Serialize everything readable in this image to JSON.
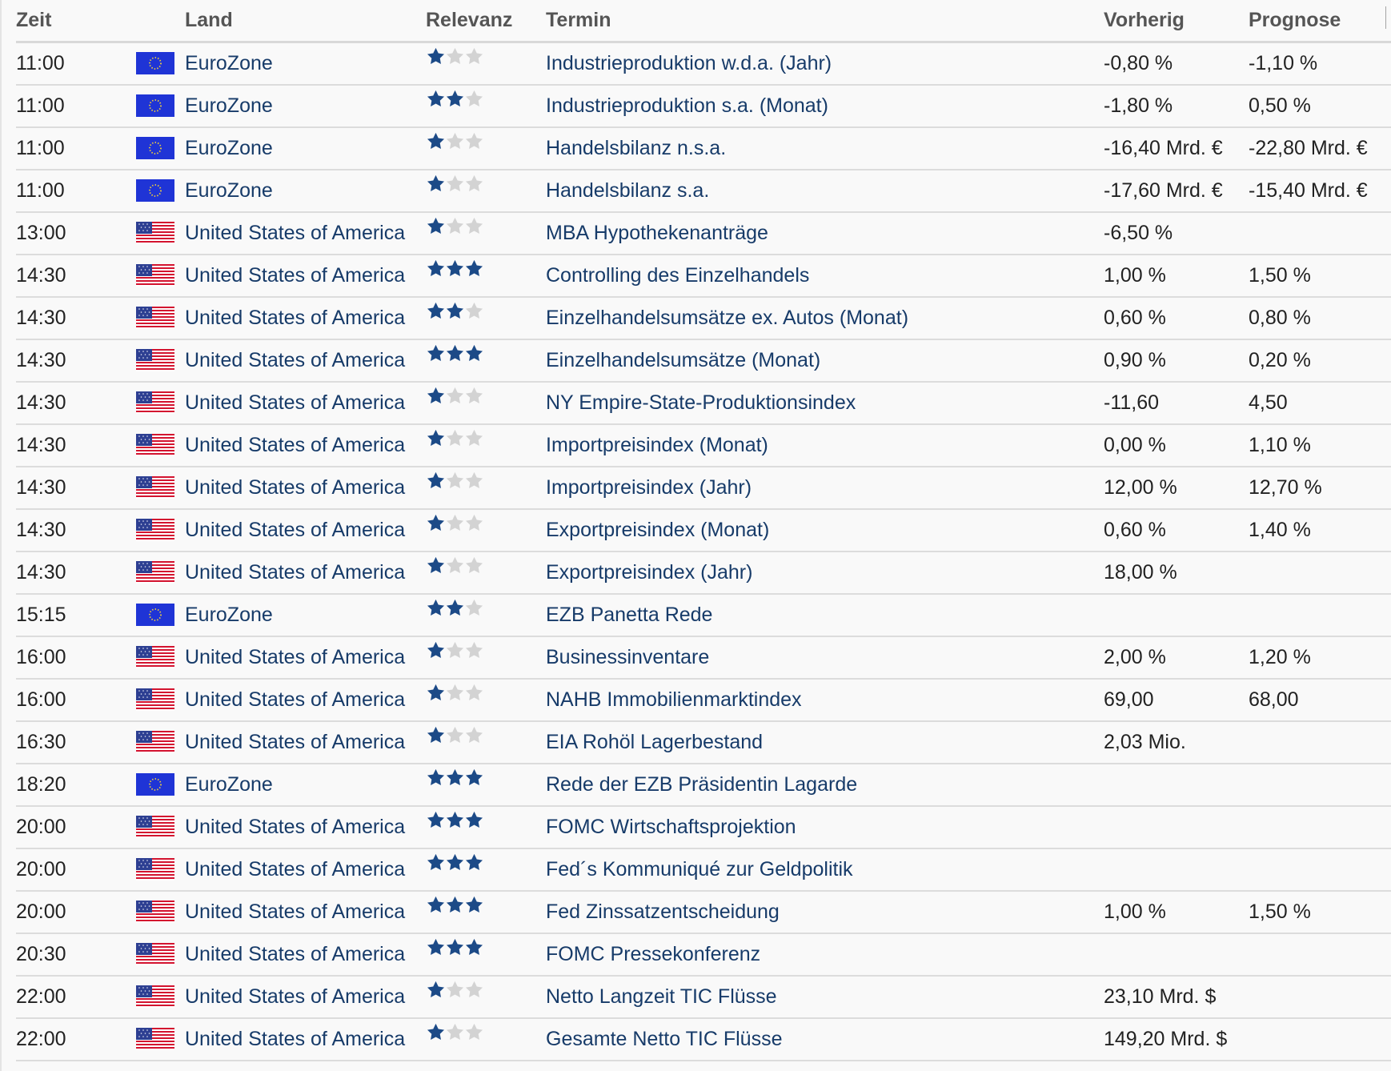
{
  "header": {
    "time": "Zeit",
    "country": "Land",
    "relevance": "Relevanz",
    "event": "Termin",
    "previous": "Vorherig",
    "forecast": "Prognose"
  },
  "colors": {
    "star_on": "#1c4a87",
    "star_off": "#d3d3d3",
    "eu_blue": "#1f34d6",
    "eu_gold": "#f3d13b",
    "us_red": "#d3132f",
    "us_white": "#ffffff",
    "us_blue": "#2d3f92"
  },
  "rows": [
    {
      "time": "11:00",
      "flag": "eu-flag-icon",
      "country": "EuroZone",
      "stars": 1,
      "event": "Industrieproduktion w.d.a. (Jahr)",
      "previous": "-0,80 %",
      "forecast": "-1,10 %"
    },
    {
      "time": "11:00",
      "flag": "eu-flag-icon",
      "country": "EuroZone",
      "stars": 2,
      "event": "Industrieproduktion s.a. (Monat)",
      "previous": "-1,80 %",
      "forecast": "0,50 %"
    },
    {
      "time": "11:00",
      "flag": "eu-flag-icon",
      "country": "EuroZone",
      "stars": 1,
      "event": "Handelsbilanz n.s.a.",
      "previous": "-16,40 Mrd. €",
      "forecast": "-22,80 Mrd. €"
    },
    {
      "time": "11:00",
      "flag": "eu-flag-icon",
      "country": "EuroZone",
      "stars": 1,
      "event": "Handelsbilanz s.a.",
      "previous": "-17,60 Mrd. €",
      "forecast": "-15,40 Mrd. €"
    },
    {
      "time": "13:00",
      "flag": "us-flag-icon",
      "country": "United States of America",
      "stars": 1,
      "event": "MBA Hypothekenanträge",
      "previous": "-6,50 %",
      "forecast": ""
    },
    {
      "time": "14:30",
      "flag": "us-flag-icon",
      "country": "United States of America",
      "stars": 3,
      "event": "Controlling des Einzelhandels",
      "previous": "1,00 %",
      "forecast": "1,50 %"
    },
    {
      "time": "14:30",
      "flag": "us-flag-icon",
      "country": "United States of America",
      "stars": 2,
      "event": "Einzelhandelsumsätze ex. Autos (Monat)",
      "previous": "0,60 %",
      "forecast": "0,80 %"
    },
    {
      "time": "14:30",
      "flag": "us-flag-icon",
      "country": "United States of America",
      "stars": 3,
      "event": "Einzelhandelsumsätze (Monat)",
      "previous": "0,90 %",
      "forecast": "0,20 %"
    },
    {
      "time": "14:30",
      "flag": "us-flag-icon",
      "country": "United States of America",
      "stars": 1,
      "event": "NY Empire-State-Produktionsindex",
      "previous": "-11,60",
      "forecast": "4,50"
    },
    {
      "time": "14:30",
      "flag": "us-flag-icon",
      "country": "United States of America",
      "stars": 1,
      "event": "Importpreisindex (Monat)",
      "previous": "0,00 %",
      "forecast": "1,10 %"
    },
    {
      "time": "14:30",
      "flag": "us-flag-icon",
      "country": "United States of America",
      "stars": 1,
      "event": "Importpreisindex (Jahr)",
      "previous": "12,00 %",
      "forecast": "12,70 %"
    },
    {
      "time": "14:30",
      "flag": "us-flag-icon",
      "country": "United States of America",
      "stars": 1,
      "event": "Exportpreisindex (Monat)",
      "previous": "0,60 %",
      "forecast": "1,40 %"
    },
    {
      "time": "14:30",
      "flag": "us-flag-icon",
      "country": "United States of America",
      "stars": 1,
      "event": "Exportpreisindex (Jahr)",
      "previous": "18,00 %",
      "forecast": ""
    },
    {
      "time": "15:15",
      "flag": "eu-flag-icon",
      "country": "EuroZone",
      "stars": 2,
      "event": "EZB Panetta Rede",
      "previous": "",
      "forecast": ""
    },
    {
      "time": "16:00",
      "flag": "us-flag-icon",
      "country": "United States of America",
      "stars": 1,
      "event": "Businessinventare",
      "previous": "2,00 %",
      "forecast": "1,20 %"
    },
    {
      "time": "16:00",
      "flag": "us-flag-icon",
      "country": "United States of America",
      "stars": 1,
      "event": "NAHB Immobilienmarktindex",
      "previous": "69,00",
      "forecast": "68,00"
    },
    {
      "time": "16:30",
      "flag": "us-flag-icon",
      "country": "United States of America",
      "stars": 1,
      "event": "EIA Rohöl Lagerbestand",
      "previous": "2,03 Mio.",
      "forecast": ""
    },
    {
      "time": "18:20",
      "flag": "eu-flag-icon",
      "country": "EuroZone",
      "stars": 3,
      "event": "Rede der EZB Präsidentin Lagarde",
      "previous": "",
      "forecast": ""
    },
    {
      "time": "20:00",
      "flag": "us-flag-icon",
      "country": "United States of America",
      "stars": 3,
      "event": "FOMC Wirtschaftsprojektion",
      "previous": "",
      "forecast": ""
    },
    {
      "time": "20:00",
      "flag": "us-flag-icon",
      "country": "United States of America",
      "stars": 3,
      "event": "Fed´s Kommuniqué zur Geldpolitik",
      "previous": "",
      "forecast": ""
    },
    {
      "time": "20:00",
      "flag": "us-flag-icon",
      "country": "United States of America",
      "stars": 3,
      "event": "Fed Zinssatzentscheidung",
      "previous": "1,00 %",
      "forecast": "1,50 %"
    },
    {
      "time": "20:30",
      "flag": "us-flag-icon",
      "country": "United States of America",
      "stars": 3,
      "event": "FOMC Pressekonferenz",
      "previous": "",
      "forecast": ""
    },
    {
      "time": "22:00",
      "flag": "us-flag-icon",
      "country": "United States of America",
      "stars": 1,
      "event": "Netto Langzeit TIC Flüsse",
      "previous": "23,10 Mrd. $",
      "forecast": ""
    },
    {
      "time": "22:00",
      "flag": "us-flag-icon",
      "country": "United States of America",
      "stars": 1,
      "event": "Gesamte Netto TIC Flüsse",
      "previous": "149,20 Mrd. $",
      "forecast": ""
    }
  ]
}
